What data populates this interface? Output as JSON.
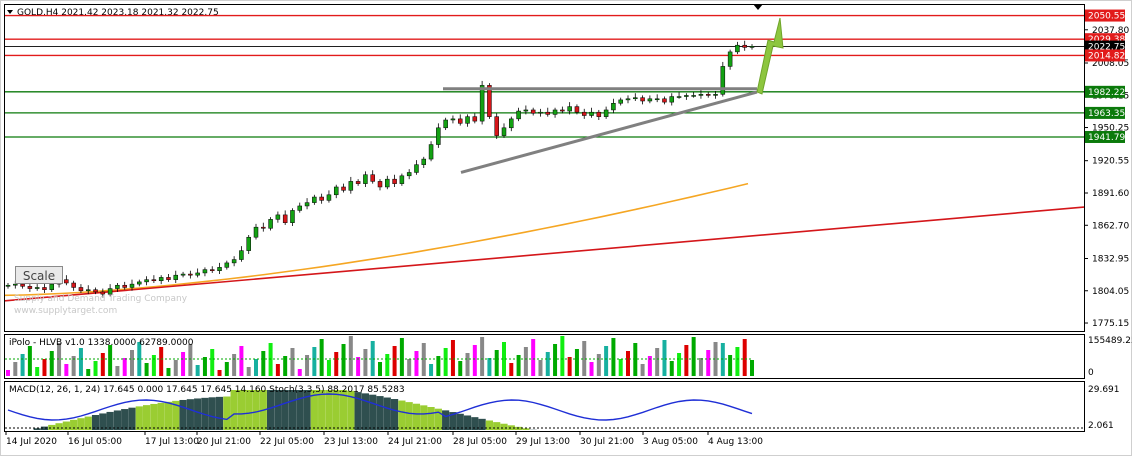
{
  "header": {
    "text": "GOLD,H4  2021.42 2023.18 2021.32 2022.75"
  },
  "scale_button": "Scale",
  "watermark": [
    "Supply and Demand Trading Company",
    "www.supplytarget.com"
  ],
  "price_labels": [
    "2037.80",
    "2008.05",
    "1979.15",
    "1950.25",
    "1920.55",
    "1891.60",
    "1862.70",
    "1832.95",
    "1804.05",
    "1775.15"
  ],
  "levels": [
    {
      "label": "2050.55",
      "color": "#e21b1b",
      "value": 2050.55
    },
    {
      "label": "2029.38",
      "color": "#e21b1b",
      "value": 2029.38
    },
    {
      "label": "2022.75",
      "color": "#000000",
      "value": 2022.75
    },
    {
      "label": "2014.82",
      "color": "#e21b1b",
      "value": 2014.82
    },
    {
      "label": "1982.22",
      "color": "#0b7a0b",
      "value": 1982.22
    },
    {
      "label": "1963.35",
      "color": "#0b7a0b",
      "value": 1963.35
    },
    {
      "label": "1941.79",
      "color": "#0b7a0b",
      "value": 1941.79
    }
  ],
  "indicator1": {
    "title": "iPolo - HLVB v1.0 1338.0000 62789.0000",
    "max_label": "155489.25",
    "zero_label": "0"
  },
  "indicator2": {
    "title": "MACD(12, 26, 1, 24) 17.645 0.000 17.645 17.645 14.160  Stoch(3,3,5) 88.2017 85.5283",
    "top_label": "29.691",
    "bottom_label": "2.061",
    "zero_label": "0.00"
  },
  "x_labels": [
    "14 Jul 2020",
    "16 Jul 05:00",
    "17 Jul 13:00",
    "20 Jul 21:00",
    "22 Jul 05:00",
    "23 Jul 13:00",
    "24 Jul 21:00",
    "28 Jul 05:00",
    "29 Jul 13:00",
    "30 Jul 21:00",
    "3 Aug 05:00",
    "4 Aug 13:00"
  ],
  "colors": {
    "bull": "#13a113",
    "bear": "#d4161a",
    "ma_orange": "#f5a623",
    "ma_red": "#d4161a",
    "arrow": "#8dc63f",
    "triangle": "#808080"
  },
  "chart_data": {
    "type": "candlestick",
    "symbol": "GOLD",
    "timeframe": "H4",
    "ylim": [
      1768,
      2060
    ],
    "y_ticks": [
      2037.8,
      2008.05,
      1979.15,
      1950.25,
      1920.55,
      1891.6,
      1862.7,
      1832.95,
      1804.05,
      1775.15
    ],
    "x_tick_labels": [
      "14 Jul 2020",
      "16 Jul 05:00",
      "17 Jul 13:00",
      "20 Jul 21:00",
      "22 Jul 05:00",
      "23 Jul 13:00",
      "24 Jul 21:00",
      "28 Jul 05:00",
      "29 Jul 13:00",
      "30 Jul 21:00",
      "3 Aug 05:00",
      "4 Aug 13:00"
    ],
    "closes": [
      1809,
      1810,
      1808,
      1806,
      1807,
      1805,
      1810,
      1814,
      1811,
      1807,
      1804,
      1805,
      1803,
      1801,
      1806,
      1809,
      1807,
      1810,
      1812,
      1814,
      1813,
      1816,
      1814,
      1818,
      1819,
      1818,
      1820,
      1823,
      1822,
      1825,
      1829,
      1832,
      1840,
      1852,
      1861,
      1860,
      1868,
      1872,
      1865,
      1876,
      1880,
      1883,
      1888,
      1885,
      1890,
      1897,
      1894,
      1902,
      1900,
      1908,
      1902,
      1897,
      1904,
      1900,
      1907,
      1910,
      1917,
      1922,
      1935,
      1950,
      1957,
      1958,
      1954,
      1960,
      1956,
      1988,
      1960,
      1943,
      1950,
      1958,
      1965,
      1966,
      1963,
      1964,
      1962,
      1966,
      1965,
      1969,
      1964,
      1961,
      1964,
      1960,
      1966,
      1972,
      1975,
      1976,
      1977,
      1974,
      1976,
      1976,
      1973,
      1978,
      1978,
      1979,
      1979,
      1980,
      1979,
      1980,
      2005,
      2018,
      2024,
      2022,
      2023
    ],
    "ma_orange": {
      "name": "",
      "from": [
        1800,
        1812
      ],
      "to": [
        1893,
        1900
      ]
    },
    "ma_red": {
      "name": "",
      "from": [
        1798,
        1820
      ],
      "to": [
        1885,
        1860
      ]
    },
    "triangle": {
      "upper": [
        1985,
        1985
      ],
      "lower": [
        1910,
        1982
      ]
    },
    "volume_max": 155489.25,
    "macd_range": [
      0,
      29.691
    ]
  }
}
